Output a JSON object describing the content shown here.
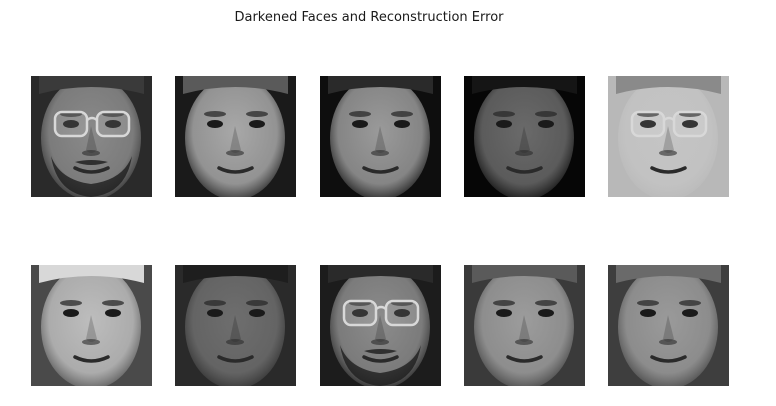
{
  "figure": {
    "title": "Darkened Faces and Reconstruction Error"
  },
  "faces": [
    {
      "row": 1,
      "col": 1,
      "glasses": true,
      "beard": true
    },
    {
      "row": 1,
      "col": 2,
      "glasses": false,
      "beard": false
    },
    {
      "row": 1,
      "col": 3,
      "glasses": false,
      "beard": false
    },
    {
      "row": 1,
      "col": 4,
      "glasses": false,
      "beard": false
    },
    {
      "row": 1,
      "col": 5,
      "glasses": true,
      "beard": false
    },
    {
      "row": 2,
      "col": 1,
      "glasses": false,
      "beard": false
    },
    {
      "row": 2,
      "col": 2,
      "glasses": false,
      "beard": false
    },
    {
      "row": 2,
      "col": 3,
      "glasses": true,
      "beard": true
    },
    {
      "row": 2,
      "col": 4,
      "glasses": false,
      "beard": false
    },
    {
      "row": 2,
      "col": 5,
      "glasses": false,
      "beard": false
    }
  ]
}
